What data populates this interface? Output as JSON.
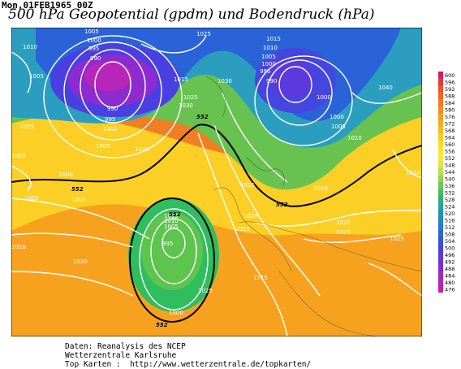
{
  "header": {
    "datetime": "Mon,01FEB1965 00Z",
    "title": "500 hPa Geopotential (gpdm) und Bodendruck (hPa)"
  },
  "map": {
    "isobar_labels": [
      {
        "text": "1005"
      },
      {
        "text": "1025"
      },
      {
        "text": "1010"
      },
      {
        "text": "1000"
      },
      {
        "text": "995"
      },
      {
        "text": "990"
      },
      {
        "text": "1005"
      },
      {
        "text": "990"
      },
      {
        "text": "995"
      },
      {
        "text": "1000"
      },
      {
        "text": "1005"
      },
      {
        "text": "1005"
      },
      {
        "text": "1010"
      },
      {
        "text": "1015"
      },
      {
        "text": "1025"
      },
      {
        "text": "1030"
      },
      {
        "text": "1030"
      },
      {
        "text": "1015"
      },
      {
        "text": "1010"
      },
      {
        "text": "1005"
      },
      {
        "text": "1000"
      },
      {
        "text": "995"
      },
      {
        "text": "990"
      },
      {
        "text": "1000"
      },
      {
        "text": "1000"
      },
      {
        "text": "1005"
      },
      {
        "text": "1010"
      },
      {
        "text": "1040"
      },
      {
        "text": "1005"
      },
      {
        "text": "1000"
      },
      {
        "text": "1000"
      },
      {
        "text": "1005"
      },
      {
        "text": "1010"
      },
      {
        "text": "1025"
      },
      {
        "text": "1020"
      },
      {
        "text": "1015"
      },
      {
        "text": "1010"
      },
      {
        "text": "1020"
      },
      {
        "text": "1015"
      },
      {
        "text": "1010"
      },
      {
        "text": "1005"
      },
      {
        "text": "995"
      },
      {
        "text": "1000"
      },
      {
        "text": "1025"
      },
      {
        "text": "1015"
      },
      {
        "text": "1030"
      },
      {
        "text": "1020"
      },
      {
        "text": "1015"
      },
      {
        "text": "1025"
      }
    ],
    "geopotential_labels": [
      "552",
      "552",
      "552",
      "552",
      "552"
    ]
  },
  "legend": {
    "ticks": [
      "600",
      "596",
      "592",
      "588",
      "584",
      "580",
      "576",
      "572",
      "568",
      "564",
      "560",
      "556",
      "552",
      "548",
      "544",
      "540",
      "536",
      "532",
      "528",
      "524",
      "520",
      "516",
      "512",
      "508",
      "504",
      "500",
      "496",
      "492",
      "488",
      "484",
      "480",
      "476"
    ],
    "colors": [
      "#d81b60",
      "#e53935",
      "#ef4f2a",
      "#f26522",
      "#f47a20",
      "#f68b1f",
      "#f79c1e",
      "#f8ad1f",
      "#f9bd21",
      "#fbcc23",
      "#fcd929",
      "#fde436",
      "#f6e845",
      "#dbe54a",
      "#bcdd4c",
      "#96d24c",
      "#6fc650",
      "#4cbb5d",
      "#33b07a",
      "#24a596",
      "#1f96ad",
      "#2188c4",
      "#2479d6",
      "#2a64dd",
      "#3353e0",
      "#4444e0",
      "#5a3adf",
      "#7232d9",
      "#8a2bd0",
      "#a127c4",
      "#b326b8",
      "#c31fae"
    ]
  },
  "footer": {
    "line1": "Daten: Reanalysis des NCEP",
    "line2": "Wetterzentrale Karlsruhe",
    "line3": "Top Karten :  http://www.wetterzentrale.de/topkarten/"
  }
}
